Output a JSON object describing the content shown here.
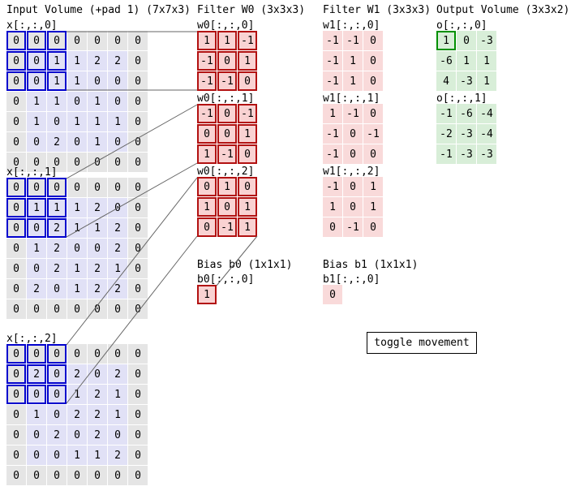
{
  "titles": {
    "input": "Input Volume (+pad 1) (7x7x3)",
    "filter_w0": "Filter W0 (3x3x3)",
    "filter_w1": "Filter W1 (3x3x3)",
    "output": "Output Volume (3x3x2)",
    "bias_b0": "Bias b0 (1x1x1)",
    "bias_b1": "Bias b1 (1x1x1)"
  },
  "input": {
    "slices": [
      {
        "label": "x[:,:,0]",
        "highlight": [
          0,
          0,
          2,
          2
        ],
        "rows": [
          [
            0,
            0,
            0,
            0,
            0,
            0,
            0
          ],
          [
            0,
            0,
            1,
            1,
            2,
            2,
            0
          ],
          [
            0,
            0,
            1,
            1,
            0,
            0,
            0
          ],
          [
            0,
            1,
            1,
            0,
            1,
            0,
            0
          ],
          [
            0,
            1,
            0,
            1,
            1,
            1,
            0
          ],
          [
            0,
            0,
            2,
            0,
            1,
            0,
            0
          ],
          [
            0,
            0,
            0,
            0,
            0,
            0,
            0
          ]
        ]
      },
      {
        "label": "x[:,:,1]",
        "highlight": [
          0,
          0,
          2,
          2
        ],
        "rows": [
          [
            0,
            0,
            0,
            0,
            0,
            0,
            0
          ],
          [
            0,
            1,
            1,
            1,
            2,
            0,
            0
          ],
          [
            0,
            0,
            2,
            1,
            1,
            2,
            0
          ],
          [
            0,
            1,
            2,
            0,
            0,
            2,
            0
          ],
          [
            0,
            0,
            2,
            1,
            2,
            1,
            0
          ],
          [
            0,
            2,
            0,
            1,
            2,
            2,
            0
          ],
          [
            0,
            0,
            0,
            0,
            0,
            0,
            0
          ]
        ]
      },
      {
        "label": "x[:,:,2]",
        "highlight": [
          0,
          0,
          2,
          2
        ],
        "rows": [
          [
            0,
            0,
            0,
            0,
            0,
            0,
            0
          ],
          [
            0,
            2,
            0,
            2,
            0,
            2,
            0
          ],
          [
            0,
            0,
            0,
            1,
            2,
            1,
            0
          ],
          [
            0,
            1,
            0,
            2,
            2,
            1,
            0
          ],
          [
            0,
            0,
            2,
            0,
            2,
            0,
            0
          ],
          [
            0,
            0,
            0,
            1,
            1,
            2,
            0
          ],
          [
            0,
            0,
            0,
            0,
            0,
            0,
            0
          ]
        ]
      }
    ]
  },
  "filter_w0": {
    "slices": [
      {
        "label": "w0[:,:,0]",
        "rows": [
          [
            1,
            1,
            -1
          ],
          [
            -1,
            0,
            1
          ],
          [
            -1,
            -1,
            0
          ]
        ]
      },
      {
        "label": "w0[:,:,1]",
        "rows": [
          [
            -1,
            0,
            -1
          ],
          [
            0,
            0,
            1
          ],
          [
            1,
            -1,
            0
          ]
        ]
      },
      {
        "label": "w0[:,:,2]",
        "rows": [
          [
            0,
            1,
            0
          ],
          [
            1,
            0,
            1
          ],
          [
            0,
            -1,
            1
          ]
        ]
      }
    ],
    "bias": {
      "label": "b0[:,:,0]",
      "rows": [
        [
          1
        ]
      ]
    }
  },
  "filter_w1": {
    "slices": [
      {
        "label": "w1[:,:,0]",
        "rows": [
          [
            -1,
            -1,
            0
          ],
          [
            -1,
            1,
            0
          ],
          [
            -1,
            1,
            0
          ]
        ]
      },
      {
        "label": "w1[:,:,1]",
        "rows": [
          [
            1,
            -1,
            0
          ],
          [
            -1,
            0,
            -1
          ],
          [
            -1,
            0,
            0
          ]
        ]
      },
      {
        "label": "w1[:,:,2]",
        "rows": [
          [
            -1,
            0,
            1
          ],
          [
            1,
            0,
            1
          ],
          [
            0,
            -1,
            0
          ]
        ]
      }
    ],
    "bias": {
      "label": "b1[:,:,0]",
      "rows": [
        [
          0
        ]
      ]
    }
  },
  "output": {
    "slices": [
      {
        "label": "o[:,:,0]",
        "highlight": [
          0,
          0,
          0,
          0
        ],
        "rows": [
          [
            1,
            0,
            -3
          ],
          [
            -6,
            1,
            1
          ],
          [
            4,
            -3,
            1
          ]
        ]
      },
      {
        "label": "o[:,:,1]",
        "rows": [
          [
            -1,
            -6,
            -4
          ],
          [
            -2,
            -3,
            -4
          ],
          [
            -1,
            -3,
            -3
          ]
        ]
      }
    ]
  },
  "button": {
    "label": "toggle movement"
  },
  "colors": {
    "input_data_fill": "#e1e1f6",
    "input_pad_fill": "#e5e5e5",
    "input_highlight_border": "#0000cd",
    "filter_fill": "#f9d2d2",
    "filter_w0_border": "#b21111",
    "output_fill": "#d8eed8",
    "output_highlight_border": "#009000"
  }
}
